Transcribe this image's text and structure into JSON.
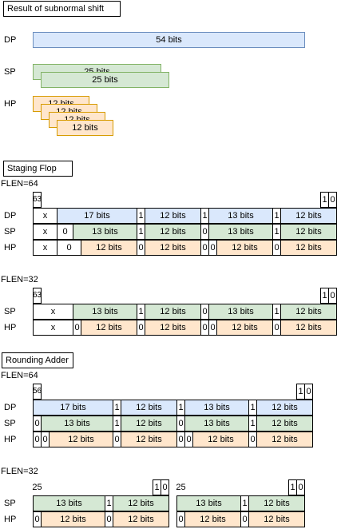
{
  "subnormal": {
    "title": "Result of subnormal shift",
    "dp_label": "DP",
    "sp_label": "SP",
    "hp_label": "HP",
    "dp_bar": "54 bits",
    "sp_bars": [
      "25 bits",
      "25 bits"
    ],
    "hp_bars": [
      "12 bits",
      "12 bits",
      "12 bits",
      "12 bits"
    ]
  },
  "staging": {
    "title": "Staging Flop",
    "flen64": {
      "label": "FLEN=64",
      "msb": "63",
      "bit1": "1",
      "bit0": "0",
      "dp": {
        "label": "DP",
        "cells": [
          "x",
          "17 bits",
          "1",
          "12 bits",
          "1",
          "13 bits",
          "1",
          "12 bits"
        ]
      },
      "sp": {
        "label": "SP",
        "cells": [
          "x",
          "0",
          "13 bits",
          "1",
          "12 bits",
          "0",
          "13 bits",
          "1",
          "12 bits"
        ]
      },
      "hp": {
        "label": "HP",
        "cells": [
          "x",
          "0",
          "12 bits",
          "0",
          "12 bits",
          "0",
          "0",
          "12 bits",
          "0",
          "12 bits"
        ]
      }
    },
    "flen32": {
      "label": "FLEN=32",
      "msb": "63",
      "bit1": "1",
      "bit0": "0",
      "sp": {
        "label": "SP",
        "cells": [
          "x",
          "13 bits",
          "1",
          "12 bits",
          "0",
          "13 bits",
          "1",
          "12 bits"
        ]
      },
      "hp": {
        "label": "HP",
        "cells": [
          "x",
          "0",
          "12 bits",
          "0",
          "12 bits",
          "0",
          "0",
          "12 bits",
          "0",
          "12 bits"
        ]
      }
    }
  },
  "rounding": {
    "title": "Rounding Adder",
    "flen64": {
      "label": "FLEN=64",
      "msb": "56",
      "bit1": "1",
      "bit0": "0",
      "dp": {
        "label": "DP",
        "cells": [
          "17 bits",
          "1",
          "12 bits",
          "1",
          "13 bits",
          "1",
          "12 bits"
        ]
      },
      "sp": {
        "label": "SP",
        "cells": [
          "0",
          "13 bits",
          "1",
          "12 bits",
          "0",
          "13 bits",
          "1",
          "12 bits"
        ]
      },
      "hp": {
        "label": "HP",
        "cells": [
          "0",
          "0",
          "12 bits",
          "0",
          "12 bits",
          "0",
          "0",
          "12 bits",
          "0",
          "12 bits"
        ]
      }
    },
    "flen32": {
      "label": "FLEN=32",
      "left": {
        "msb": "25",
        "bit1": "1",
        "bit0": "0"
      },
      "right": {
        "msb": "25",
        "bit1": "1",
        "bit0": "0"
      },
      "sp_label": "SP",
      "hp_label": "HP",
      "sp_left": [
        "13 bits",
        "1",
        "12 bits"
      ],
      "sp_right": [
        "13 bits",
        "1",
        "12 bits"
      ],
      "hp_left": [
        "0",
        "12 bits",
        "0",
        "12 bits"
      ],
      "hp_right": [
        "0",
        "12 bits",
        "0",
        "12 bits"
      ]
    }
  }
}
